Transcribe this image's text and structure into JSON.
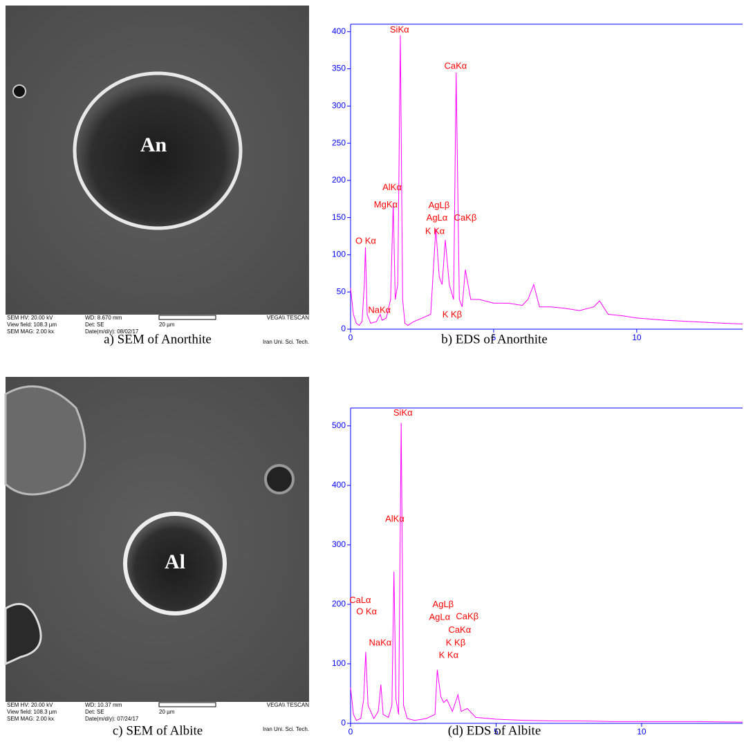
{
  "sem_panels": [
    {
      "label": "An",
      "caption": "a) SEM of Anorthite",
      "hv": "SEM HV: 20.00 kV",
      "view_field": "View field: 108.3 µm",
      "mag": "SEM MAG: 2.00 kx",
      "wd": "WD: 8.670 mm",
      "det": "Det: SE",
      "date": "Date(m/d/y): 08/02/17",
      "scale": "20 µm",
      "brand": "VEGA\\\\ TESCAN",
      "institute": "Iran Uni. Sci. Tech."
    },
    {
      "label": "Al",
      "caption": "c) SEM of Albite",
      "hv": "SEM HV: 20.00 kV",
      "view_field": "View field: 108.3 µm",
      "mag": "SEM MAG: 2.00 kx",
      "wd": "WD: 10.37 mm",
      "det": "Det: SE",
      "date": "Date(m/d/y): 07/24/17",
      "scale": "20 µm",
      "brand": "VEGA\\\\ TESCAN",
      "institute": "Iran Uni. Sci. Tech."
    }
  ],
  "chart_data": [
    {
      "type": "line",
      "caption": "b) EDS of Anorthite",
      "color": "#ff00ff",
      "axis_color": "#0000ff",
      "x": [
        0,
        0.1,
        0.2,
        0.3,
        0.4,
        0.48,
        0.52,
        0.58,
        0.7,
        0.9,
        1.04,
        1.1,
        1.25,
        1.4,
        1.49,
        1.56,
        1.65,
        1.74,
        1.82,
        1.9,
        2.0,
        2.2,
        2.5,
        2.8,
        2.98,
        3.1,
        3.2,
        3.31,
        3.45,
        3.6,
        3.69,
        3.8,
        3.9,
        4.01,
        4.2,
        4.5,
        5.0,
        5.5,
        6.0,
        6.2,
        6.4,
        6.6,
        7.0,
        7.5,
        8.0,
        8.5,
        8.7,
        9.0,
        9.5,
        10,
        11,
        12,
        13,
        13.7
      ],
      "values": [
        55,
        20,
        8,
        5,
        10,
        60,
        110,
        20,
        8,
        10,
        20,
        12,
        15,
        40,
        170,
        40,
        60,
        395,
        40,
        8,
        5,
        10,
        15,
        20,
        135,
        70,
        60,
        120,
        60,
        40,
        345,
        40,
        30,
        80,
        40,
        40,
        35,
        35,
        32,
        40,
        60,
        30,
        30,
        28,
        25,
        30,
        38,
        20,
        18,
        15,
        12,
        10,
        8,
        7
      ],
      "xlim": [
        0,
        13.7
      ],
      "ylim": [
        0,
        410
      ],
      "xticks": [
        0,
        5,
        10
      ],
      "yticks": [
        0,
        50,
        100,
        150,
        200,
        250,
        300,
        350,
        400
      ],
      "annotations": [
        {
          "text": "SiKα",
          "x": 1.71,
          "y": 402
        },
        {
          "text": "CaKα",
          "x": 3.67,
          "y": 353
        },
        {
          "text": "AlKα",
          "x": 1.45,
          "y": 190
        },
        {
          "text": "MgKα",
          "x": 1.23,
          "y": 167
        },
        {
          "text": "AgLβ",
          "x": 3.09,
          "y": 166
        },
        {
          "text": "AgLα",
          "x": 3.02,
          "y": 149
        },
        {
          "text": "CaKβ",
          "x": 4.01,
          "y": 149
        },
        {
          "text": "O Kα",
          "x": 0.53,
          "y": 118
        },
        {
          "text": "K Kα",
          "x": 2.95,
          "y": 131
        },
        {
          "text": "NaKα",
          "x": 1.01,
          "y": 25
        },
        {
          "text": "K Kβ",
          "x": 3.55,
          "y": 19
        }
      ]
    },
    {
      "type": "line",
      "caption": "(d) EDS of Albite",
      "color": "#ff00ff",
      "axis_color": "#0000ff",
      "x": [
        0,
        0.1,
        0.2,
        0.35,
        0.45,
        0.52,
        0.6,
        0.8,
        0.95,
        1.04,
        1.12,
        1.3,
        1.42,
        1.49,
        1.56,
        1.65,
        1.74,
        1.82,
        1.95,
        2.2,
        2.6,
        2.9,
        2.98,
        3.1,
        3.2,
        3.31,
        3.5,
        3.69,
        3.8,
        4.01,
        4.3,
        5,
        6,
        7,
        8,
        9,
        10,
        11,
        12,
        13.47
      ],
      "values": [
        60,
        15,
        5,
        8,
        40,
        120,
        30,
        8,
        20,
        65,
        15,
        10,
        30,
        255,
        40,
        15,
        505,
        30,
        8,
        5,
        8,
        15,
        90,
        45,
        35,
        40,
        20,
        48,
        20,
        25,
        10,
        7,
        5,
        4,
        4,
        3,
        3,
        3,
        3,
        2
      ],
      "xlim": [
        0,
        13.47
      ],
      "ylim": [
        0,
        530
      ],
      "xticks": [
        0,
        5,
        10
      ],
      "yticks": [
        0,
        100,
        200,
        300,
        400,
        500
      ],
      "annotations": [
        {
          "text": "SiKα",
          "x": 1.8,
          "y": 521
        },
        {
          "text": "AlKα",
          "x": 1.52,
          "y": 343
        },
        {
          "text": "CaLα",
          "x": 0.33,
          "y": 206
        },
        {
          "text": "O Kα",
          "x": 0.55,
          "y": 187
        },
        {
          "text": "NaKα",
          "x": 1.02,
          "y": 135
        },
        {
          "text": "AgLβ",
          "x": 3.18,
          "y": 199
        },
        {
          "text": "AgLα",
          "x": 3.06,
          "y": 178
        },
        {
          "text": "CaKβ",
          "x": 4.01,
          "y": 179
        },
        {
          "text": "CaKα",
          "x": 3.75,
          "y": 156
        },
        {
          "text": "K Kβ",
          "x": 3.61,
          "y": 135
        },
        {
          "text": "K Kα",
          "x": 3.37,
          "y": 114
        }
      ]
    }
  ]
}
